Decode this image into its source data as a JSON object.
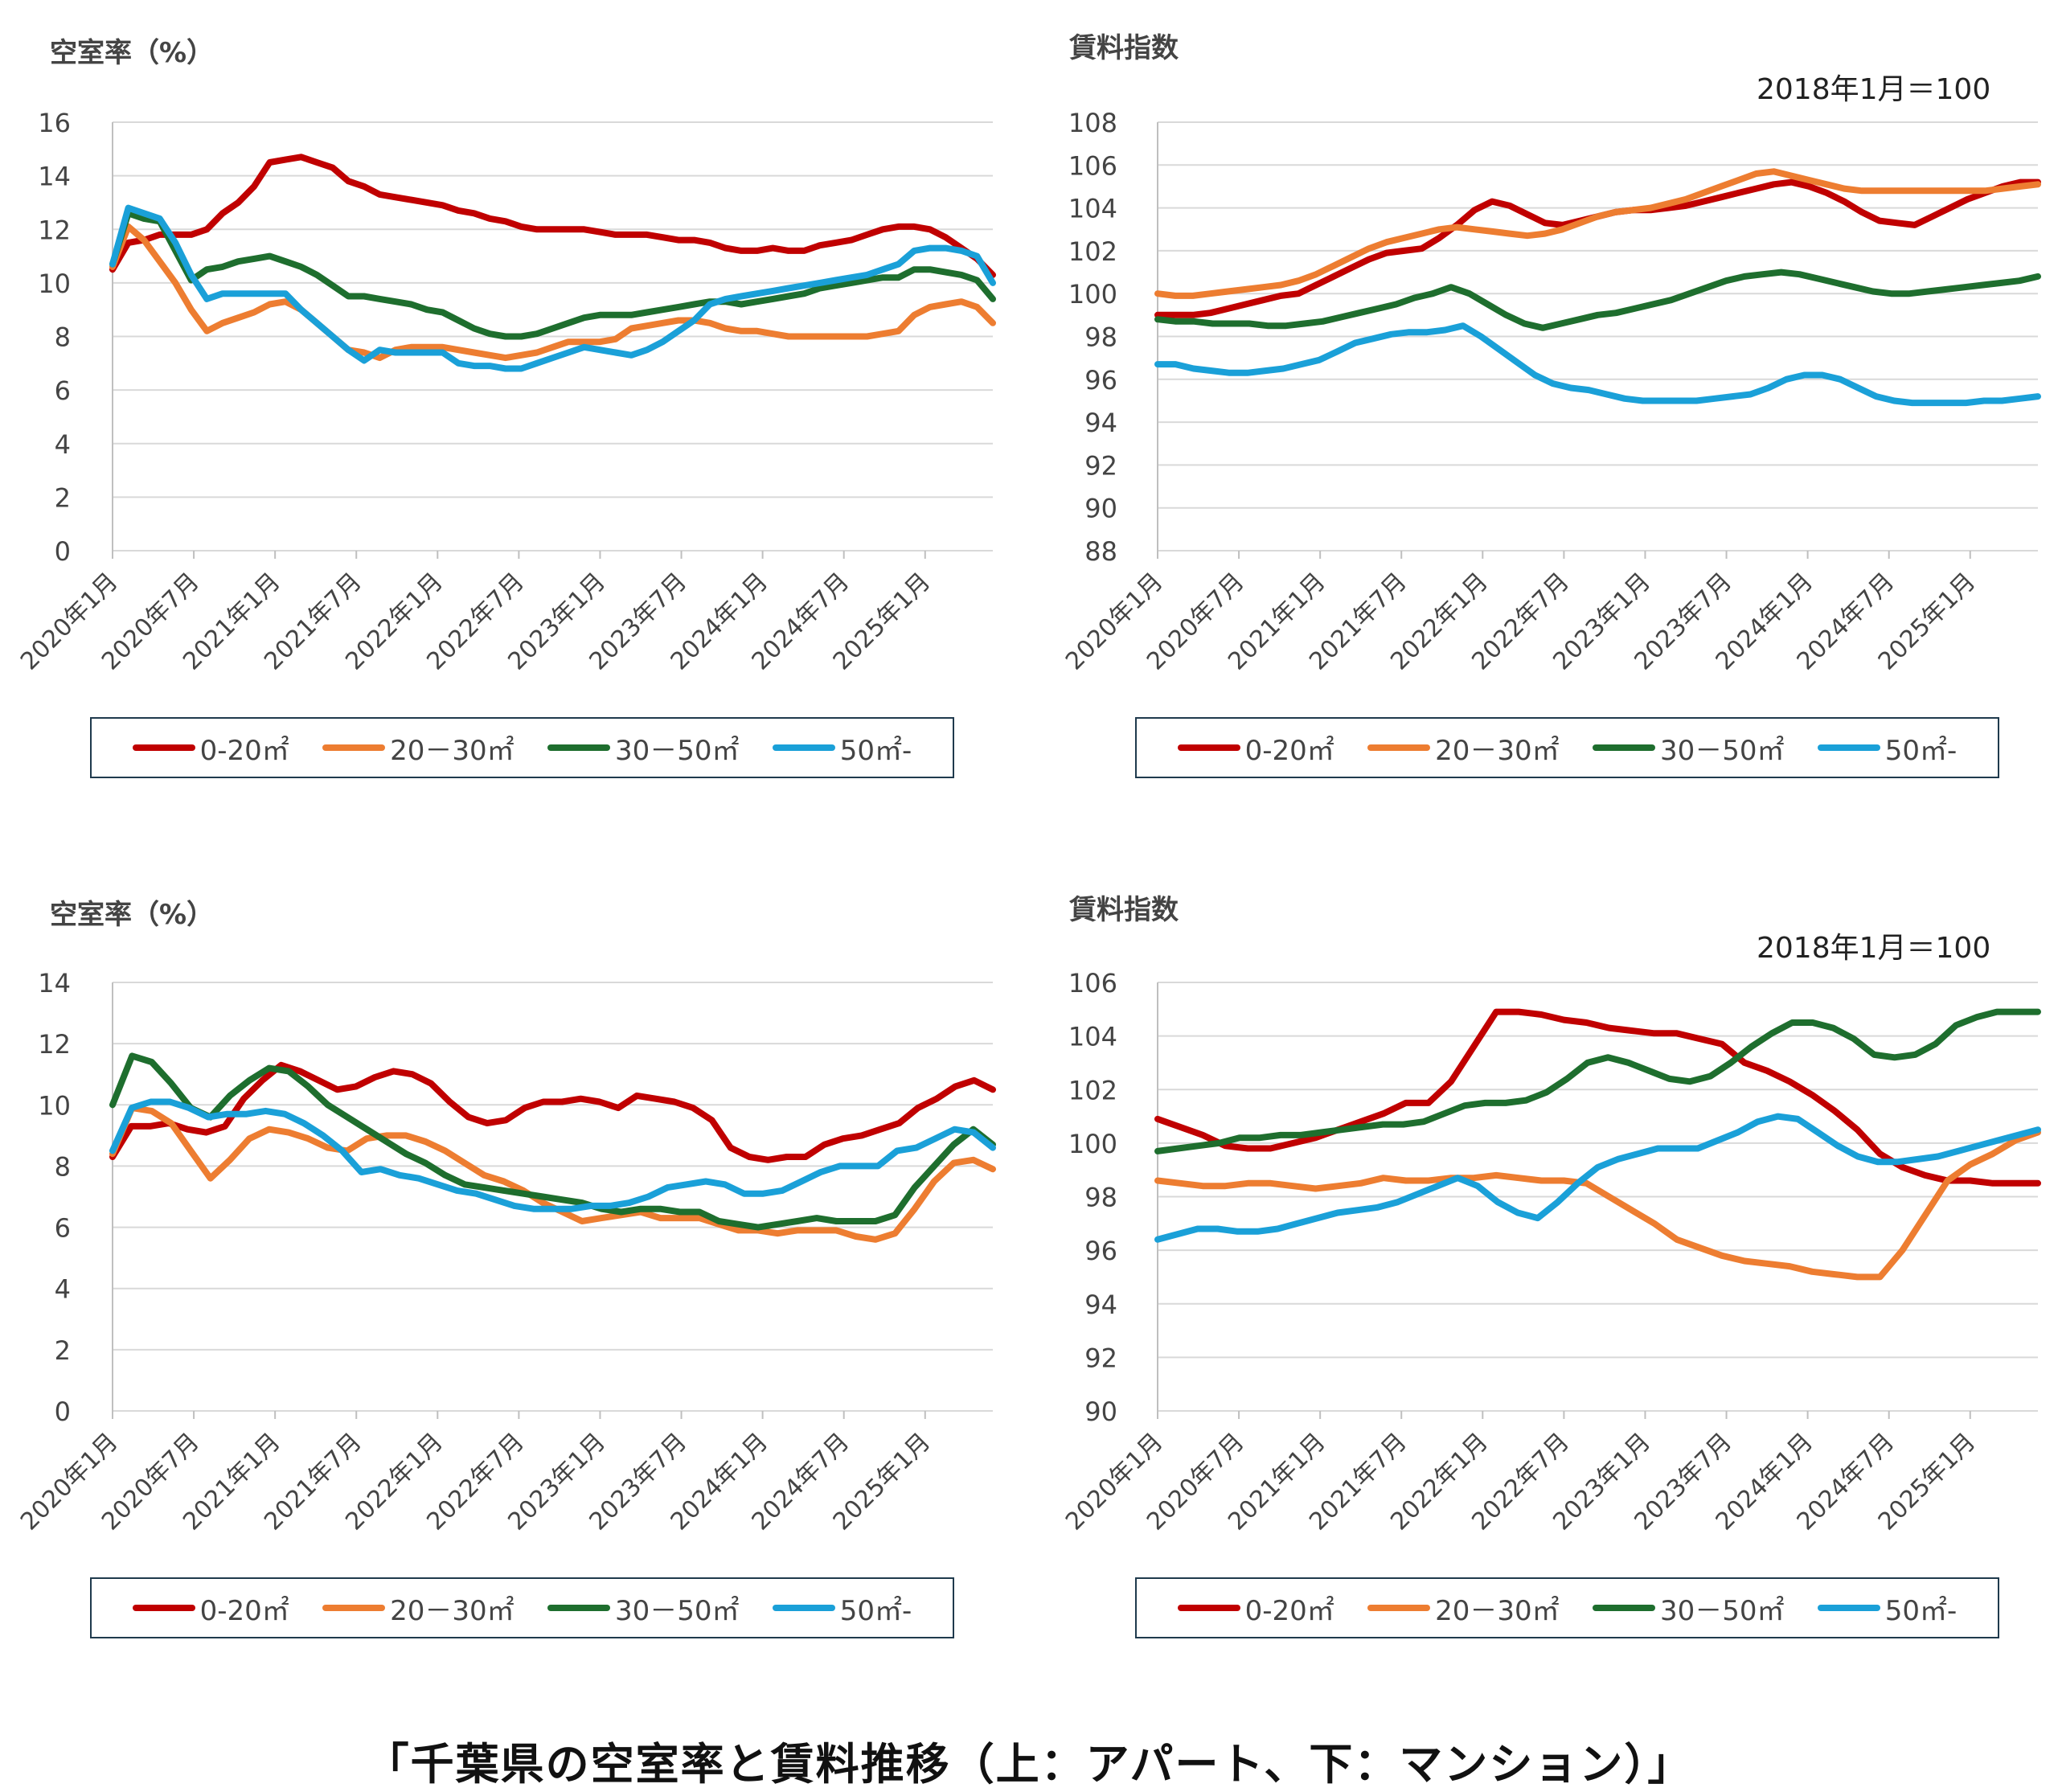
{
  "caption": "「千葉県の空室率と賃料推移（上：アパート、下：マンション）」",
  "legend_labels": [
    "0-20㎡",
    "20－30㎡",
    "30－50㎡",
    "50㎡-"
  ],
  "colors": {
    "s0": "#c00000",
    "s1": "#ed7d31",
    "s2": "#1e6e2e",
    "s3": "#1aa0d8",
    "grid": "#d9d9d9"
  },
  "chart_data": [
    {
      "type": "line",
      "title": "空室率（%）",
      "note": "",
      "x_ticks": [
        "2020年1月",
        "2020年7月",
        "2021年1月",
        "2021年7月",
        "2022年1月",
        "2022年7月",
        "2023年1月",
        "2023年7月",
        "2024年1月",
        "2024年7月",
        "2025年1月"
      ],
      "yticks": [
        "0",
        "2",
        "4",
        "6",
        "8",
        "10",
        "12",
        "14",
        "16"
      ],
      "ylim": [
        0,
        16
      ],
      "series": [
        {
          "name": "0-20㎡",
          "values": [
            10.5,
            11.5,
            11.6,
            11.8,
            11.8,
            11.8,
            12.0,
            12.6,
            13.0,
            13.6,
            14.5,
            14.6,
            14.7,
            14.5,
            14.3,
            13.8,
            13.6,
            13.3,
            13.2,
            13.1,
            13.0,
            12.9,
            12.7,
            12.6,
            12.4,
            12.3,
            12.1,
            12.0,
            12.0,
            12.0,
            12.0,
            11.9,
            11.8,
            11.8,
            11.8,
            11.7,
            11.6,
            11.6,
            11.5,
            11.3,
            11.2,
            11.2,
            11.3,
            11.2,
            11.2,
            11.4,
            11.5,
            11.6,
            11.8,
            12.0,
            12.1,
            12.1,
            12.0,
            11.7,
            11.3,
            10.9,
            10.3
          ]
        },
        {
          "name": "20－30㎡",
          "values": [
            10.6,
            12.1,
            11.6,
            10.8,
            10.0,
            9.0,
            8.2,
            8.5,
            8.7,
            8.9,
            9.2,
            9.3,
            9.0,
            8.5,
            8.0,
            7.5,
            7.4,
            7.2,
            7.5,
            7.6,
            7.6,
            7.6,
            7.5,
            7.4,
            7.3,
            7.2,
            7.3,
            7.4,
            7.6,
            7.8,
            7.8,
            7.8,
            7.9,
            8.3,
            8.4,
            8.5,
            8.6,
            8.6,
            8.5,
            8.3,
            8.2,
            8.2,
            8.1,
            8.0,
            8.0,
            8.0,
            8.0,
            8.0,
            8.0,
            8.1,
            8.2,
            8.8,
            9.1,
            9.2,
            9.3,
            9.1,
            8.5
          ]
        },
        {
          "name": "30－50㎡",
          "values": [
            10.7,
            12.6,
            12.4,
            12.3,
            11.2,
            10.1,
            10.5,
            10.6,
            10.8,
            10.9,
            11.0,
            10.8,
            10.6,
            10.3,
            9.9,
            9.5,
            9.5,
            9.4,
            9.3,
            9.2,
            9.0,
            8.9,
            8.6,
            8.3,
            8.1,
            8.0,
            8.0,
            8.1,
            8.3,
            8.5,
            8.7,
            8.8,
            8.8,
            8.8,
            8.9,
            9.0,
            9.1,
            9.2,
            9.3,
            9.3,
            9.2,
            9.3,
            9.4,
            9.5,
            9.6,
            9.8,
            9.9,
            10.0,
            10.1,
            10.2,
            10.2,
            10.5,
            10.5,
            10.4,
            10.3,
            10.1,
            9.4
          ]
        },
        {
          "name": "50㎡-",
          "values": [
            10.7,
            12.8,
            12.6,
            12.4,
            11.5,
            10.3,
            9.4,
            9.6,
            9.6,
            9.6,
            9.6,
            9.6,
            9.0,
            8.5,
            8.0,
            7.5,
            7.1,
            7.5,
            7.4,
            7.4,
            7.4,
            7.4,
            7.0,
            6.9,
            6.9,
            6.8,
            6.8,
            7.0,
            7.2,
            7.4,
            7.6,
            7.5,
            7.4,
            7.3,
            7.5,
            7.8,
            8.2,
            8.6,
            9.2,
            9.4,
            9.5,
            9.6,
            9.7,
            9.8,
            9.9,
            10.0,
            10.1,
            10.2,
            10.3,
            10.5,
            10.7,
            11.2,
            11.3,
            11.3,
            11.2,
            11.0,
            10.0
          ]
        }
      ]
    },
    {
      "type": "line",
      "title": "賃料指数",
      "note": "2018年1月＝100",
      "x_ticks": [
        "2020年1月",
        "2020年7月",
        "2021年1月",
        "2021年7月",
        "2022年1月",
        "2022年7月",
        "2023年1月",
        "2023年7月",
        "2024年1月",
        "2024年7月",
        "2025年1月"
      ],
      "yticks": [
        "88",
        "90",
        "92",
        "94",
        "96",
        "98",
        "100",
        "102",
        "104",
        "106",
        "108"
      ],
      "ylim": [
        88,
        108
      ],
      "series": [
        {
          "name": "0-20㎡",
          "values": [
            99.0,
            99.0,
            99.0,
            99.1,
            99.3,
            99.5,
            99.7,
            99.9,
            100.0,
            100.4,
            100.8,
            101.2,
            101.6,
            101.9,
            102.0,
            102.1,
            102.6,
            103.2,
            103.9,
            104.3,
            104.1,
            103.7,
            103.3,
            103.2,
            103.4,
            103.6,
            103.8,
            103.9,
            103.9,
            104.0,
            104.1,
            104.3,
            104.5,
            104.7,
            104.9,
            105.1,
            105.2,
            105.0,
            104.7,
            104.3,
            103.8,
            103.4,
            103.3,
            103.2,
            103.6,
            104.0,
            104.4,
            104.7,
            105.0,
            105.2,
            105.2
          ]
        },
        {
          "name": "20－30㎡",
          "values": [
            100.0,
            99.9,
            99.9,
            100.0,
            100.1,
            100.2,
            100.3,
            100.4,
            100.6,
            100.9,
            101.3,
            101.7,
            102.1,
            102.4,
            102.6,
            102.8,
            103.0,
            103.1,
            103.0,
            102.9,
            102.8,
            102.7,
            102.8,
            103.0,
            103.3,
            103.6,
            103.8,
            103.9,
            104.0,
            104.2,
            104.4,
            104.7,
            105.0,
            105.3,
            105.6,
            105.7,
            105.5,
            105.3,
            105.1,
            104.9,
            104.8,
            104.8,
            104.8,
            104.8,
            104.8,
            104.8,
            104.8,
            104.8,
            104.9,
            105.0,
            105.1
          ]
        },
        {
          "name": "30－50㎡",
          "values": [
            98.8,
            98.7,
            98.7,
            98.6,
            98.6,
            98.6,
            98.5,
            98.5,
            98.6,
            98.7,
            98.9,
            99.1,
            99.3,
            99.5,
            99.8,
            100.0,
            100.3,
            100.0,
            99.5,
            99.0,
            98.6,
            98.4,
            98.6,
            98.8,
            99.0,
            99.1,
            99.3,
            99.5,
            99.7,
            100.0,
            100.3,
            100.6,
            100.8,
            100.9,
            101.0,
            100.9,
            100.7,
            100.5,
            100.3,
            100.1,
            100.0,
            100.0,
            100.1,
            100.2,
            100.3,
            100.4,
            100.5,
            100.6,
            100.8
          ]
        },
        {
          "name": "50㎡-",
          "values": [
            96.7,
            96.7,
            96.5,
            96.4,
            96.3,
            96.3,
            96.4,
            96.5,
            96.7,
            96.9,
            97.3,
            97.7,
            97.9,
            98.1,
            98.2,
            98.2,
            98.3,
            98.5,
            98.0,
            97.4,
            96.8,
            96.2,
            95.8,
            95.6,
            95.5,
            95.3,
            95.1,
            95.0,
            95.0,
            95.0,
            95.0,
            95.1,
            95.2,
            95.3,
            95.6,
            96.0,
            96.2,
            96.2,
            96.0,
            95.6,
            95.2,
            95.0,
            94.9,
            94.9,
            94.9,
            94.9,
            95.0,
            95.0,
            95.1,
            95.2
          ]
        }
      ]
    },
    {
      "type": "line",
      "title": "空室率（%）",
      "note": "",
      "x_ticks": [
        "2020年1月",
        "2020年7月",
        "2021年1月",
        "2021年7月",
        "2022年1月",
        "2022年7月",
        "2023年1月",
        "2023年7月",
        "2024年1月",
        "2024年7月",
        "2025年1月"
      ],
      "yticks": [
        "0",
        "2",
        "4",
        "6",
        "8",
        "10",
        "12",
        "14"
      ],
      "ylim": [
        0,
        14
      ],
      "series": [
        {
          "name": "0-20㎡",
          "values": [
            8.3,
            9.3,
            9.3,
            9.4,
            9.2,
            9.1,
            9.3,
            10.2,
            10.8,
            11.3,
            11.1,
            10.8,
            10.5,
            10.6,
            10.9,
            11.1,
            11.0,
            10.7,
            10.1,
            9.6,
            9.4,
            9.5,
            9.9,
            10.1,
            10.1,
            10.2,
            10.1,
            9.9,
            10.3,
            10.2,
            10.1,
            9.9,
            9.5,
            8.6,
            8.3,
            8.2,
            8.3,
            8.3,
            8.7,
            8.9,
            9.0,
            9.2,
            9.4,
            9.9,
            10.2,
            10.6,
            10.8,
            10.5
          ]
        },
        {
          "name": "20－30㎡",
          "values": [
            8.4,
            9.9,
            9.8,
            9.4,
            8.5,
            7.6,
            8.2,
            8.9,
            9.2,
            9.1,
            8.9,
            8.6,
            8.5,
            8.9,
            9.0,
            9.0,
            8.8,
            8.5,
            8.1,
            7.7,
            7.5,
            7.2,
            6.8,
            6.5,
            6.2,
            6.3,
            6.4,
            6.5,
            6.3,
            6.3,
            6.3,
            6.1,
            5.9,
            5.9,
            5.8,
            5.9,
            5.9,
            5.9,
            5.7,
            5.6,
            5.8,
            6.6,
            7.5,
            8.1,
            8.2,
            7.9
          ]
        },
        {
          "name": "30－50㎡",
          "values": [
            10.0,
            11.6,
            11.4,
            10.7,
            9.9,
            9.6,
            10.3,
            10.8,
            11.2,
            11.1,
            10.6,
            10.0,
            9.6,
            9.2,
            8.8,
            8.4,
            8.1,
            7.7,
            7.4,
            7.3,
            7.2,
            7.1,
            7.0,
            6.9,
            6.8,
            6.6,
            6.5,
            6.6,
            6.6,
            6.5,
            6.5,
            6.2,
            6.1,
            6.0,
            6.1,
            6.2,
            6.3,
            6.2,
            6.2,
            6.2,
            6.4,
            7.3,
            8.0,
            8.7,
            9.2,
            8.7
          ]
        },
        {
          "name": "50㎡-",
          "values": [
            8.5,
            9.9,
            10.1,
            10.1,
            9.9,
            9.6,
            9.7,
            9.7,
            9.8,
            9.7,
            9.4,
            9.0,
            8.5,
            7.8,
            7.9,
            7.7,
            7.6,
            7.4,
            7.2,
            7.1,
            6.9,
            6.7,
            6.6,
            6.6,
            6.6,
            6.7,
            6.7,
            6.8,
            7.0,
            7.3,
            7.4,
            7.5,
            7.4,
            7.1,
            7.1,
            7.2,
            7.5,
            7.8,
            8.0,
            8.0,
            8.0,
            8.5,
            8.6,
            8.9,
            9.2,
            9.1,
            8.6
          ]
        }
      ]
    },
    {
      "type": "line",
      "title": "賃料指数",
      "note": "2018年1月＝100",
      "x_ticks": [
        "2020年1月",
        "2020年7月",
        "2021年1月",
        "2021年7月",
        "2022年1月",
        "2022年7月",
        "2023年1月",
        "2023年7月",
        "2024年1月",
        "2024年7月",
        "2025年1月"
      ],
      "yticks": [
        "90",
        "92",
        "94",
        "96",
        "98",
        "100",
        "102",
        "104",
        "106"
      ],
      "ylim": [
        90,
        106
      ],
      "series": [
        {
          "name": "0-20㎡",
          "values": [
            100.9,
            100.6,
            100.3,
            99.9,
            99.8,
            99.8,
            100.0,
            100.2,
            100.5,
            100.8,
            101.1,
            101.5,
            101.5,
            102.3,
            103.6,
            104.9,
            104.9,
            104.8,
            104.6,
            104.5,
            104.3,
            104.2,
            104.1,
            104.1,
            103.9,
            103.7,
            103.0,
            102.7,
            102.3,
            101.8,
            101.2,
            100.5,
            99.6,
            99.1,
            98.8,
            98.6,
            98.6,
            98.5,
            98.5,
            98.5
          ]
        },
        {
          "name": "20－30㎡",
          "values": [
            98.6,
            98.5,
            98.4,
            98.4,
            98.5,
            98.5,
            98.4,
            98.3,
            98.4,
            98.5,
            98.7,
            98.6,
            98.6,
            98.7,
            98.7,
            98.8,
            98.7,
            98.6,
            98.6,
            98.5,
            98.0,
            97.5,
            97.0,
            96.4,
            96.1,
            95.8,
            95.6,
            95.5,
            95.4,
            95.2,
            95.1,
            95.0,
            95.0,
            96.0,
            97.3,
            98.6,
            99.2,
            99.6,
            100.1,
            100.4
          ]
        },
        {
          "name": "30－50㎡",
          "values": [
            99.7,
            99.8,
            99.9,
            100.0,
            100.2,
            100.2,
            100.3,
            100.3,
            100.4,
            100.5,
            100.6,
            100.7,
            100.7,
            100.8,
            101.1,
            101.4,
            101.5,
            101.5,
            101.6,
            101.9,
            102.4,
            103.0,
            103.2,
            103.0,
            102.7,
            102.4,
            102.3,
            102.5,
            103.0,
            103.6,
            104.1,
            104.5,
            104.5,
            104.3,
            103.9,
            103.3,
            103.2,
            103.3,
            103.7,
            104.4,
            104.7,
            104.9,
            104.9,
            104.9
          ]
        },
        {
          "name": "50㎡-",
          "values": [
            96.4,
            96.6,
            96.8,
            96.8,
            96.7,
            96.7,
            96.8,
            97.0,
            97.2,
            97.4,
            97.5,
            97.6,
            97.8,
            98.1,
            98.4,
            98.7,
            98.4,
            97.8,
            97.4,
            97.2,
            97.8,
            98.5,
            99.1,
            99.4,
            99.6,
            99.8,
            99.8,
            99.8,
            100.1,
            100.4,
            100.8,
            101.0,
            100.9,
            100.4,
            99.9,
            99.5,
            99.3,
            99.3,
            99.4,
            99.5,
            99.7,
            99.9,
            100.1,
            100.3,
            100.5
          ]
        }
      ]
    }
  ]
}
